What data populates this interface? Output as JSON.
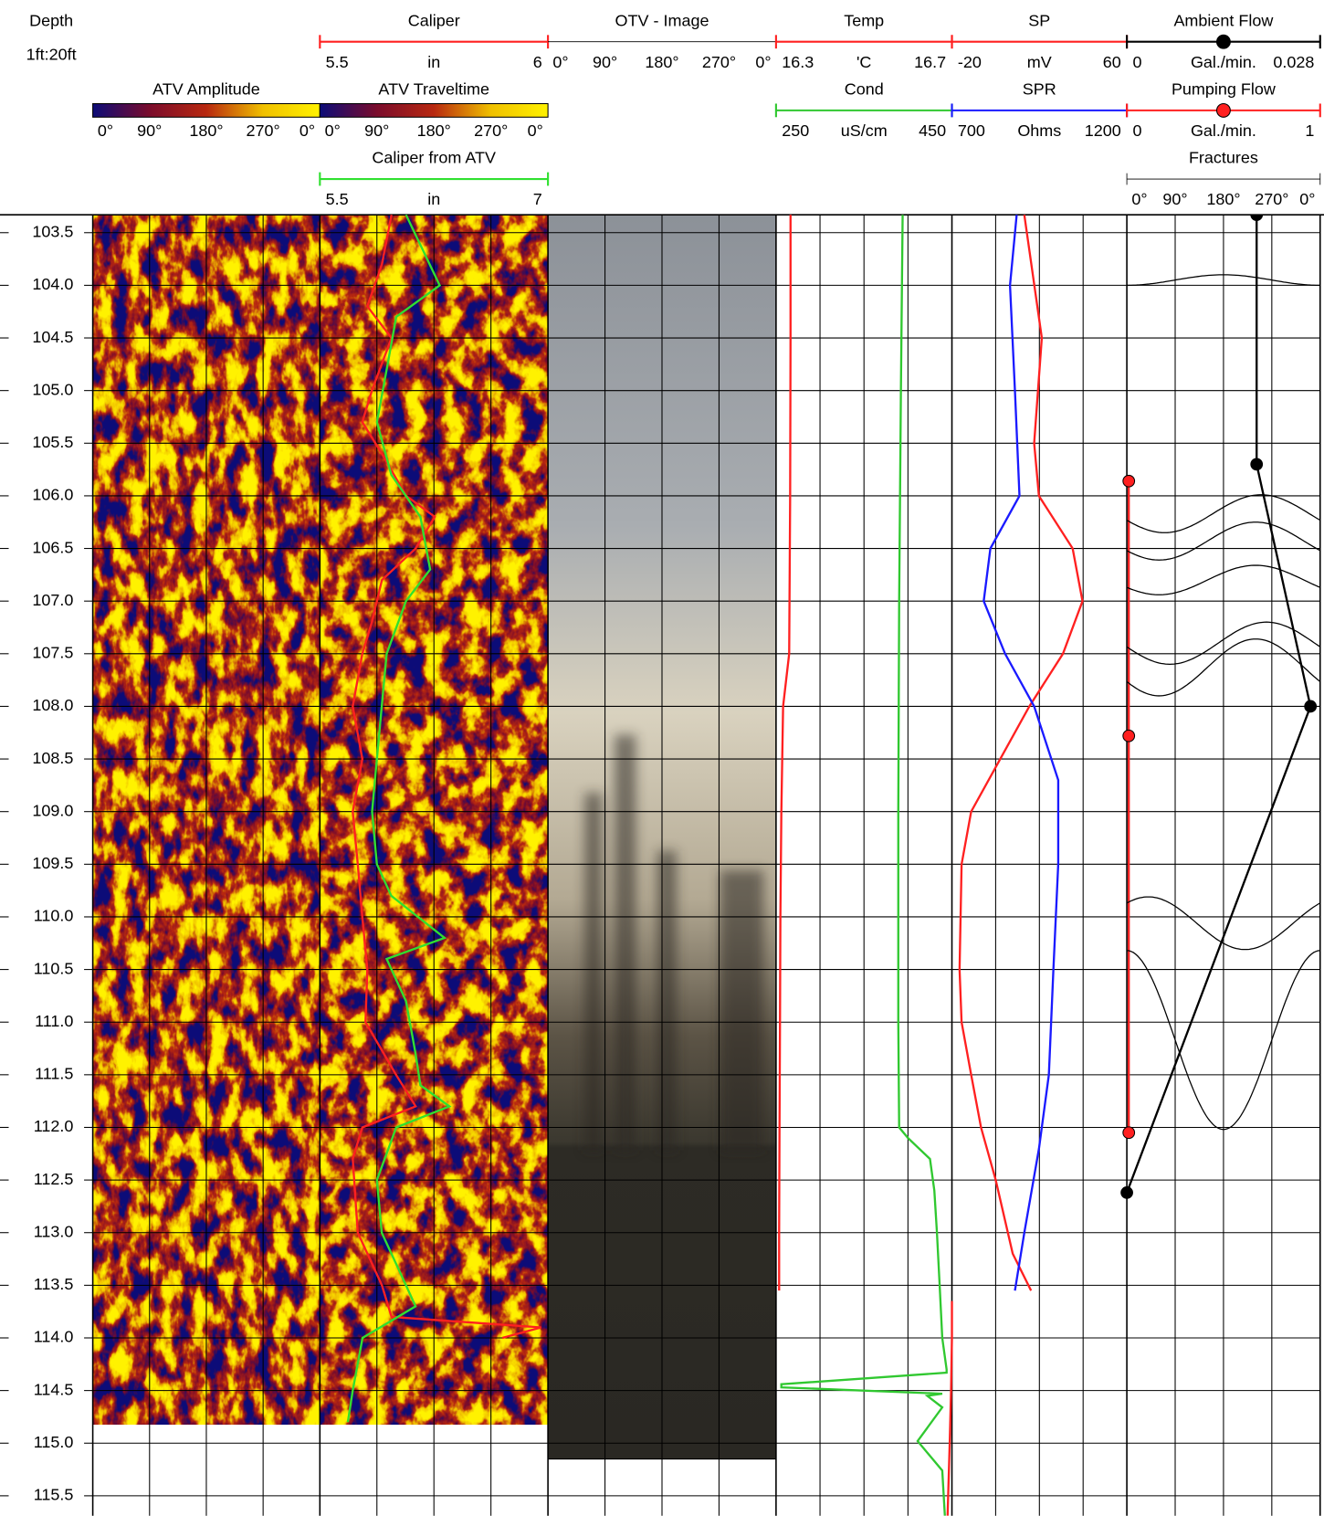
{
  "depth_track": {
    "title": "Depth",
    "scale": "1ft:20ft",
    "ylim": [
      103.33,
      115.69
    ],
    "yticks": [
      103.5,
      {
        "value": 104,
        "label": "104.0"
      },
      104.5,
      {
        "value": 105,
        "label": "105.0"
      },
      105.5,
      {
        "value": 106,
        "label": "106.0"
      },
      106.5,
      {
        "value": 107,
        "label": "107.0"
      },
      107.5,
      {
        "value": 108,
        "label": "108.0"
      },
      108.5,
      {
        "value": 109,
        "label": "109.0"
      },
      109.5,
      {
        "value": 110,
        "label": "110.0"
      },
      110.5,
      {
        "value": 111,
        "label": "111.0"
      },
      111.5,
      {
        "value": 112,
        "label": "112.0"
      },
      112.5,
      {
        "value": 113,
        "label": "113.0"
      },
      113.5,
      {
        "value": 114,
        "label": "114.0"
      },
      114.5,
      {
        "value": 115,
        "label": "115.0"
      },
      115.5
    ]
  },
  "tracks": [
    {
      "kind": "image",
      "title": "ATV Amplitude",
      "colormap": [
        "#0c0c78",
        "#7a0c2c",
        "#b82810",
        "#f0c000",
        "#fff200"
      ],
      "interval": [
        103.33,
        114.82
      ],
      "azimuth_ticks": [
        {
          "value": 0,
          "label": "0°"
        },
        {
          "value": 90,
          "label": "90°"
        },
        {
          "value": 180,
          "label": "180°"
        },
        {
          "value": 270,
          "label": "270°"
        },
        {
          "value": 360,
          "label": "0°"
        }
      ]
    },
    {
      "kind": "image",
      "title": "ATV Traveltime",
      "colormap": [
        "#0c0c78",
        "#7a0c2c",
        "#b82810",
        "#f0c000",
        "#fff200"
      ],
      "interval": [
        103.33,
        114.82
      ],
      "azimuth_ticks": [
        {
          "value": 0,
          "label": "0°"
        },
        {
          "value": 90,
          "label": "90°"
        },
        {
          "value": 180,
          "label": "180°"
        },
        {
          "value": 270,
          "label": "270°"
        },
        {
          "value": 360,
          "label": "0°"
        }
      ],
      "curves": [
        {
          "title": "Caliper",
          "unit": "in",
          "range": [
            5.5,
            6
          ],
          "color": "#ff2020",
          "depth": [
            103.33,
            103.8,
            104.2,
            104.5,
            105,
            105.3,
            105.6,
            106,
            106.2,
            106.5,
            106.8,
            107.2,
            107.5,
            108,
            108.5,
            109,
            109.5,
            110,
            110.5,
            111,
            111.5,
            111.8,
            112,
            112.3,
            113,
            113.5,
            113.8,
            113.9,
            114
          ],
          "values": [
            5.657,
            5.636,
            5.604,
            5.657,
            5.614,
            5.593,
            5.636,
            5.689,
            5.752,
            5.71,
            5.636,
            5.614,
            5.593,
            5.572,
            5.593,
            5.572,
            5.583,
            5.593,
            5.604,
            5.6,
            5.667,
            5.71,
            5.593,
            5.572,
            5.583,
            5.636,
            5.657,
            5.985,
            5.9
          ]
        },
        {
          "title": "Caliper from ATV",
          "unit": "in",
          "range": [
            5.5,
            7
          ],
          "color": "#30e030",
          "depth": [
            103.33,
            104,
            104.3,
            104.8,
            105.3,
            105.8,
            106.2,
            106.7,
            107,
            107.5,
            108,
            108.5,
            109,
            109.5,
            109.8,
            110.2,
            110.4,
            110.8,
            111.3,
            111.6,
            111.8,
            112,
            112.5,
            113,
            113.5,
            113.7,
            114,
            114.5,
            114.8
          ],
          "values": [
            6.066,
            6.288,
            6.002,
            5.939,
            5.875,
            5.97,
            6.161,
            6.225,
            6.066,
            5.939,
            5.907,
            5.875,
            5.843,
            5.875,
            5.97,
            6.32,
            5.939,
            6.066,
            6.129,
            6.161,
            6.352,
            6.002,
            5.875,
            5.907,
            6.066,
            6.129,
            5.78,
            5.716,
            5.684
          ]
        }
      ]
    },
    {
      "kind": "image",
      "title": "OTV - Image",
      "interval": [
        103.33,
        115.15
      ],
      "azimuth_ticks": [
        {
          "value": 0,
          "label": "0°"
        },
        {
          "value": 90,
          "label": "90°"
        },
        {
          "value": 180,
          "label": "180°"
        },
        {
          "value": 270,
          "label": "270°"
        },
        {
          "value": 360,
          "label": "0°"
        }
      ]
    },
    {
      "kind": "curves",
      "curves": [
        {
          "title": "Temp",
          "unit": "'C",
          "range": [
            16.3,
            16.7
          ],
          "color": "#ff2020",
          "depth": [
            103.33,
            104.5,
            106,
            107.5,
            108,
            109,
            110,
            111,
            112,
            113,
            113.55,
            113.6,
            113.65,
            114,
            114.5,
            115,
            115.69
          ],
          "values": [
            16.333,
            16.333,
            16.332,
            16.33,
            16.316,
            16.312,
            16.31,
            16.309,
            16.308,
            16.307,
            16.307,
            null,
            16.7,
            16.7,
            16.698,
            16.695,
            16.69
          ]
        },
        {
          "title": "Cond",
          "unit": "uS/cm",
          "range": [
            250,
            450
          ],
          "color": "#30c830",
          "depth": [
            103.33,
            105,
            107,
            109,
            111,
            112,
            112.1,
            112.3,
            112.6,
            113,
            113.5,
            114,
            114.3,
            114.33,
            114.44,
            114.47,
            114.53,
            114.55,
            114.66,
            114.98,
            115.26,
            115.69
          ],
          "values": [
            394,
            392,
            390,
            389,
            389,
            390,
            400,
            425,
            430,
            433,
            436,
            439,
            444,
            444,
            256,
            256,
            439,
            422,
            439,
            411,
            439,
            442
          ]
        }
      ]
    },
    {
      "kind": "curves",
      "curves": [
        {
          "title": "SP",
          "unit": "mV",
          "range": [
            -20,
            60
          ],
          "color": "#ff2020",
          "depth": [
            103.33,
            104.5,
            105.5,
            106,
            106.5,
            107,
            107.5,
            108,
            108.5,
            109,
            109.5,
            110.5,
            111,
            111.5,
            112,
            112.5,
            113.2,
            113.55
          ],
          "values": [
            13.1,
            21.1,
            17.6,
            19.8,
            35.2,
            39.7,
            30.8,
            15.4,
            2.1,
            -11.2,
            -15.6,
            -16.5,
            -15.6,
            -11.2,
            -6.7,
            0,
            7.8,
            16.2
          ]
        },
        {
          "title": "SPR",
          "unit": "Ohms",
          "range": [
            700,
            1200
          ],
          "color": "#1a1aff",
          "depth": [
            103.33,
            104,
            105,
            106,
            106.5,
            107,
            107.5,
            108,
            108.7,
            109.5,
            110.5,
            111.5,
            112.2,
            113,
            113.55
          ],
          "values": [
            885,
            866,
            880,
            893,
            810,
            791,
            852,
            935,
            1004,
            1004,
            990,
            977,
            949,
            907,
            880
          ]
        }
      ]
    },
    {
      "kind": "curves",
      "curves": [
        {
          "title": "Ambient Flow",
          "unit": "Gal./min.",
          "range": [
            0,
            0.028
          ],
          "color": "#000000",
          "markers": true,
          "depth": [
            103.33,
            105.7,
            108,
            112.62
          ],
          "values": [
            0.0188,
            0.0188,
            0.0266,
            0
          ]
        },
        {
          "title": "Pumping Flow",
          "unit": "Gal./min.",
          "range": [
            0,
            1
          ],
          "color": "#ff2020",
          "markers": true,
          "depth": [
            105.86,
            108.28,
            112.05
          ],
          "values": [
            0.01,
            0.01,
            0.01
          ]
        }
      ],
      "fractures": {
        "title": "Fractures",
        "azimuth_ticks": [
          {
            "value": 0,
            "label": "0°"
          },
          {
            "value": 90,
            "label": "90°"
          },
          {
            "value": 180,
            "label": "180°"
          },
          {
            "value": 270,
            "label": "270°"
          },
          {
            "value": 360,
            "label": "0°"
          }
        ],
        "items": [
          {
            "depth": 103.95,
            "amplitude": 0.05,
            "azimuth": 0
          },
          {
            "depth": 106.17,
            "amplitude": 0.18,
            "azimuth": 70
          },
          {
            "depth": 106.43,
            "amplitude": 0.18,
            "azimuth": 60
          },
          {
            "depth": 106.8,
            "amplitude": 0.14,
            "azimuth": 60
          },
          {
            "depth": 107.4,
            "amplitude": 0.2,
            "azimuth": 80
          },
          {
            "depth": 107.63,
            "amplitude": 0.27,
            "azimuth": 60
          },
          {
            "depth": 110.06,
            "amplitude": 0.25,
            "azimuth": 220
          },
          {
            "depth": 111.17,
            "amplitude": 0.85,
            "azimuth": 180
          }
        ]
      }
    }
  ]
}
